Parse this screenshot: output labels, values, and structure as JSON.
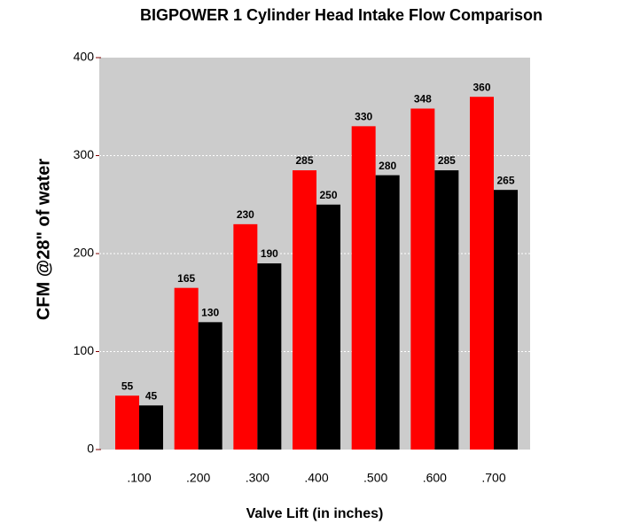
{
  "chart_data": {
    "type": "bar",
    "title": "BIGPOWER 1 Cylinder Head Intake Flow Comparison",
    "y_label": "CFM @28\" of water",
    "x_label": "Valve Lift (in inches)",
    "categories": [
      ".100",
      ".200",
      ".300",
      ".400",
      ".500",
      ".600",
      ".700"
    ],
    "series": [
      {
        "color": "#ff0000",
        "values": [
          55,
          165,
          230,
          285,
          330,
          348,
          360
        ]
      },
      {
        "color": "#000000",
        "values": [
          45,
          130,
          190,
          250,
          280,
          285,
          265
        ]
      }
    ],
    "ylim": [
      0,
      400
    ],
    "yticks": [
      0,
      100,
      200,
      300,
      400
    ],
    "grid": true,
    "background": "#cccccc"
  }
}
